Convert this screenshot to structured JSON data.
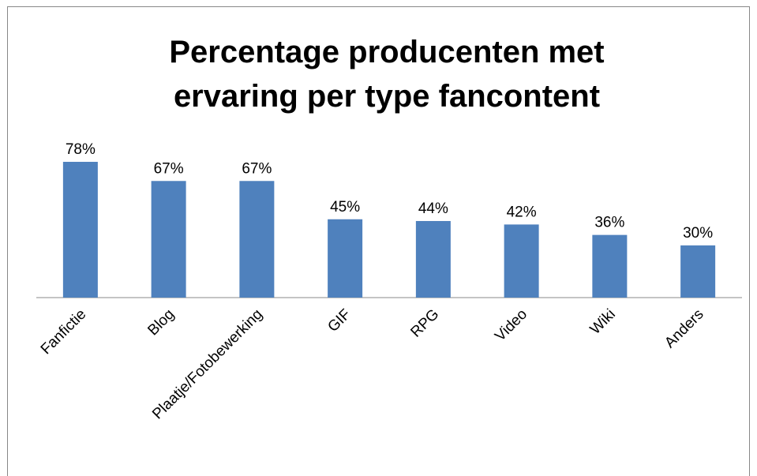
{
  "chart_data": {
    "type": "bar",
    "title": "Percentage producenten met ervaring per type fancontent",
    "categories": [
      "Fanfictie",
      "Blog",
      "Plaatje/Fotobewerking",
      "GIF",
      "RPG",
      "Video",
      "Wiki",
      "Anders"
    ],
    "values": [
      78,
      67,
      67,
      45,
      44,
      42,
      36,
      30
    ],
    "value_labels": [
      "78%",
      "67%",
      "67%",
      "45%",
      "44%",
      "42%",
      "36%",
      "30%"
    ],
    "color": "#4f81bd",
    "ylim": [
      0,
      100
    ]
  }
}
